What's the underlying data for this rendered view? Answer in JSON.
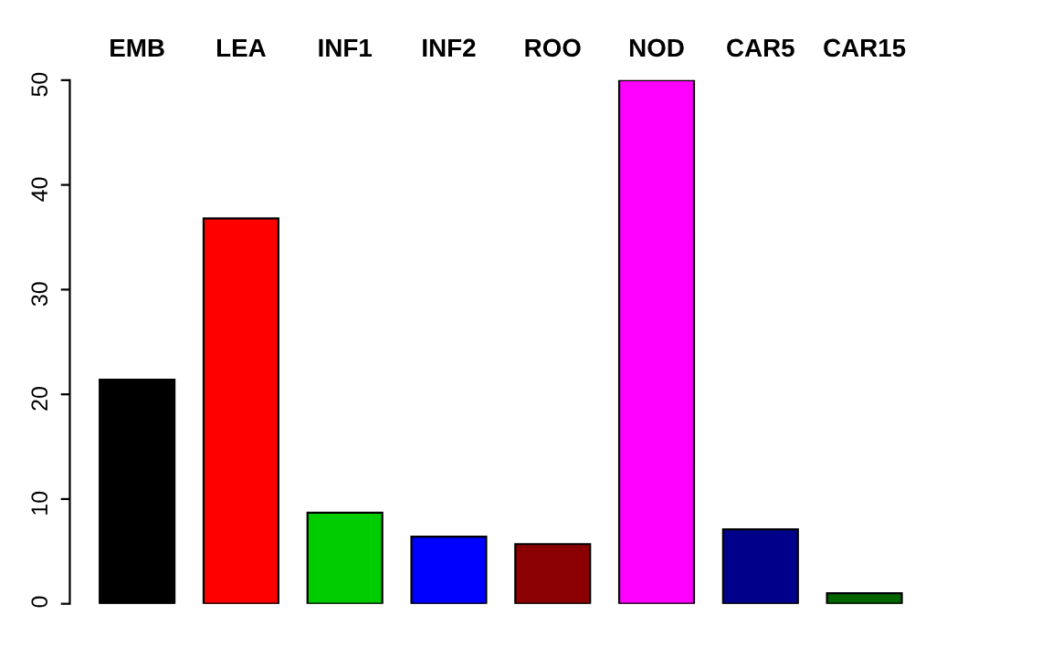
{
  "chart_data": {
    "type": "bar",
    "categories": [
      "EMB",
      "LEA",
      "INF1",
      "INF2",
      "ROO",
      "NOD",
      "CAR5",
      "CAR15"
    ],
    "values": [
      21.4,
      36.8,
      8.7,
      6.4,
      5.7,
      50,
      7.1,
      1.0
    ],
    "colors": [
      "#000000",
      "#ff0000",
      "#00cd00",
      "#0000ff",
      "#8b0000",
      "#ff00ff",
      "#00008b",
      "#006400"
    ],
    "ylim": [
      0,
      50
    ],
    "yticks": [
      0,
      10,
      20,
      30,
      40,
      50
    ],
    "grid": false,
    "legend": false
  }
}
